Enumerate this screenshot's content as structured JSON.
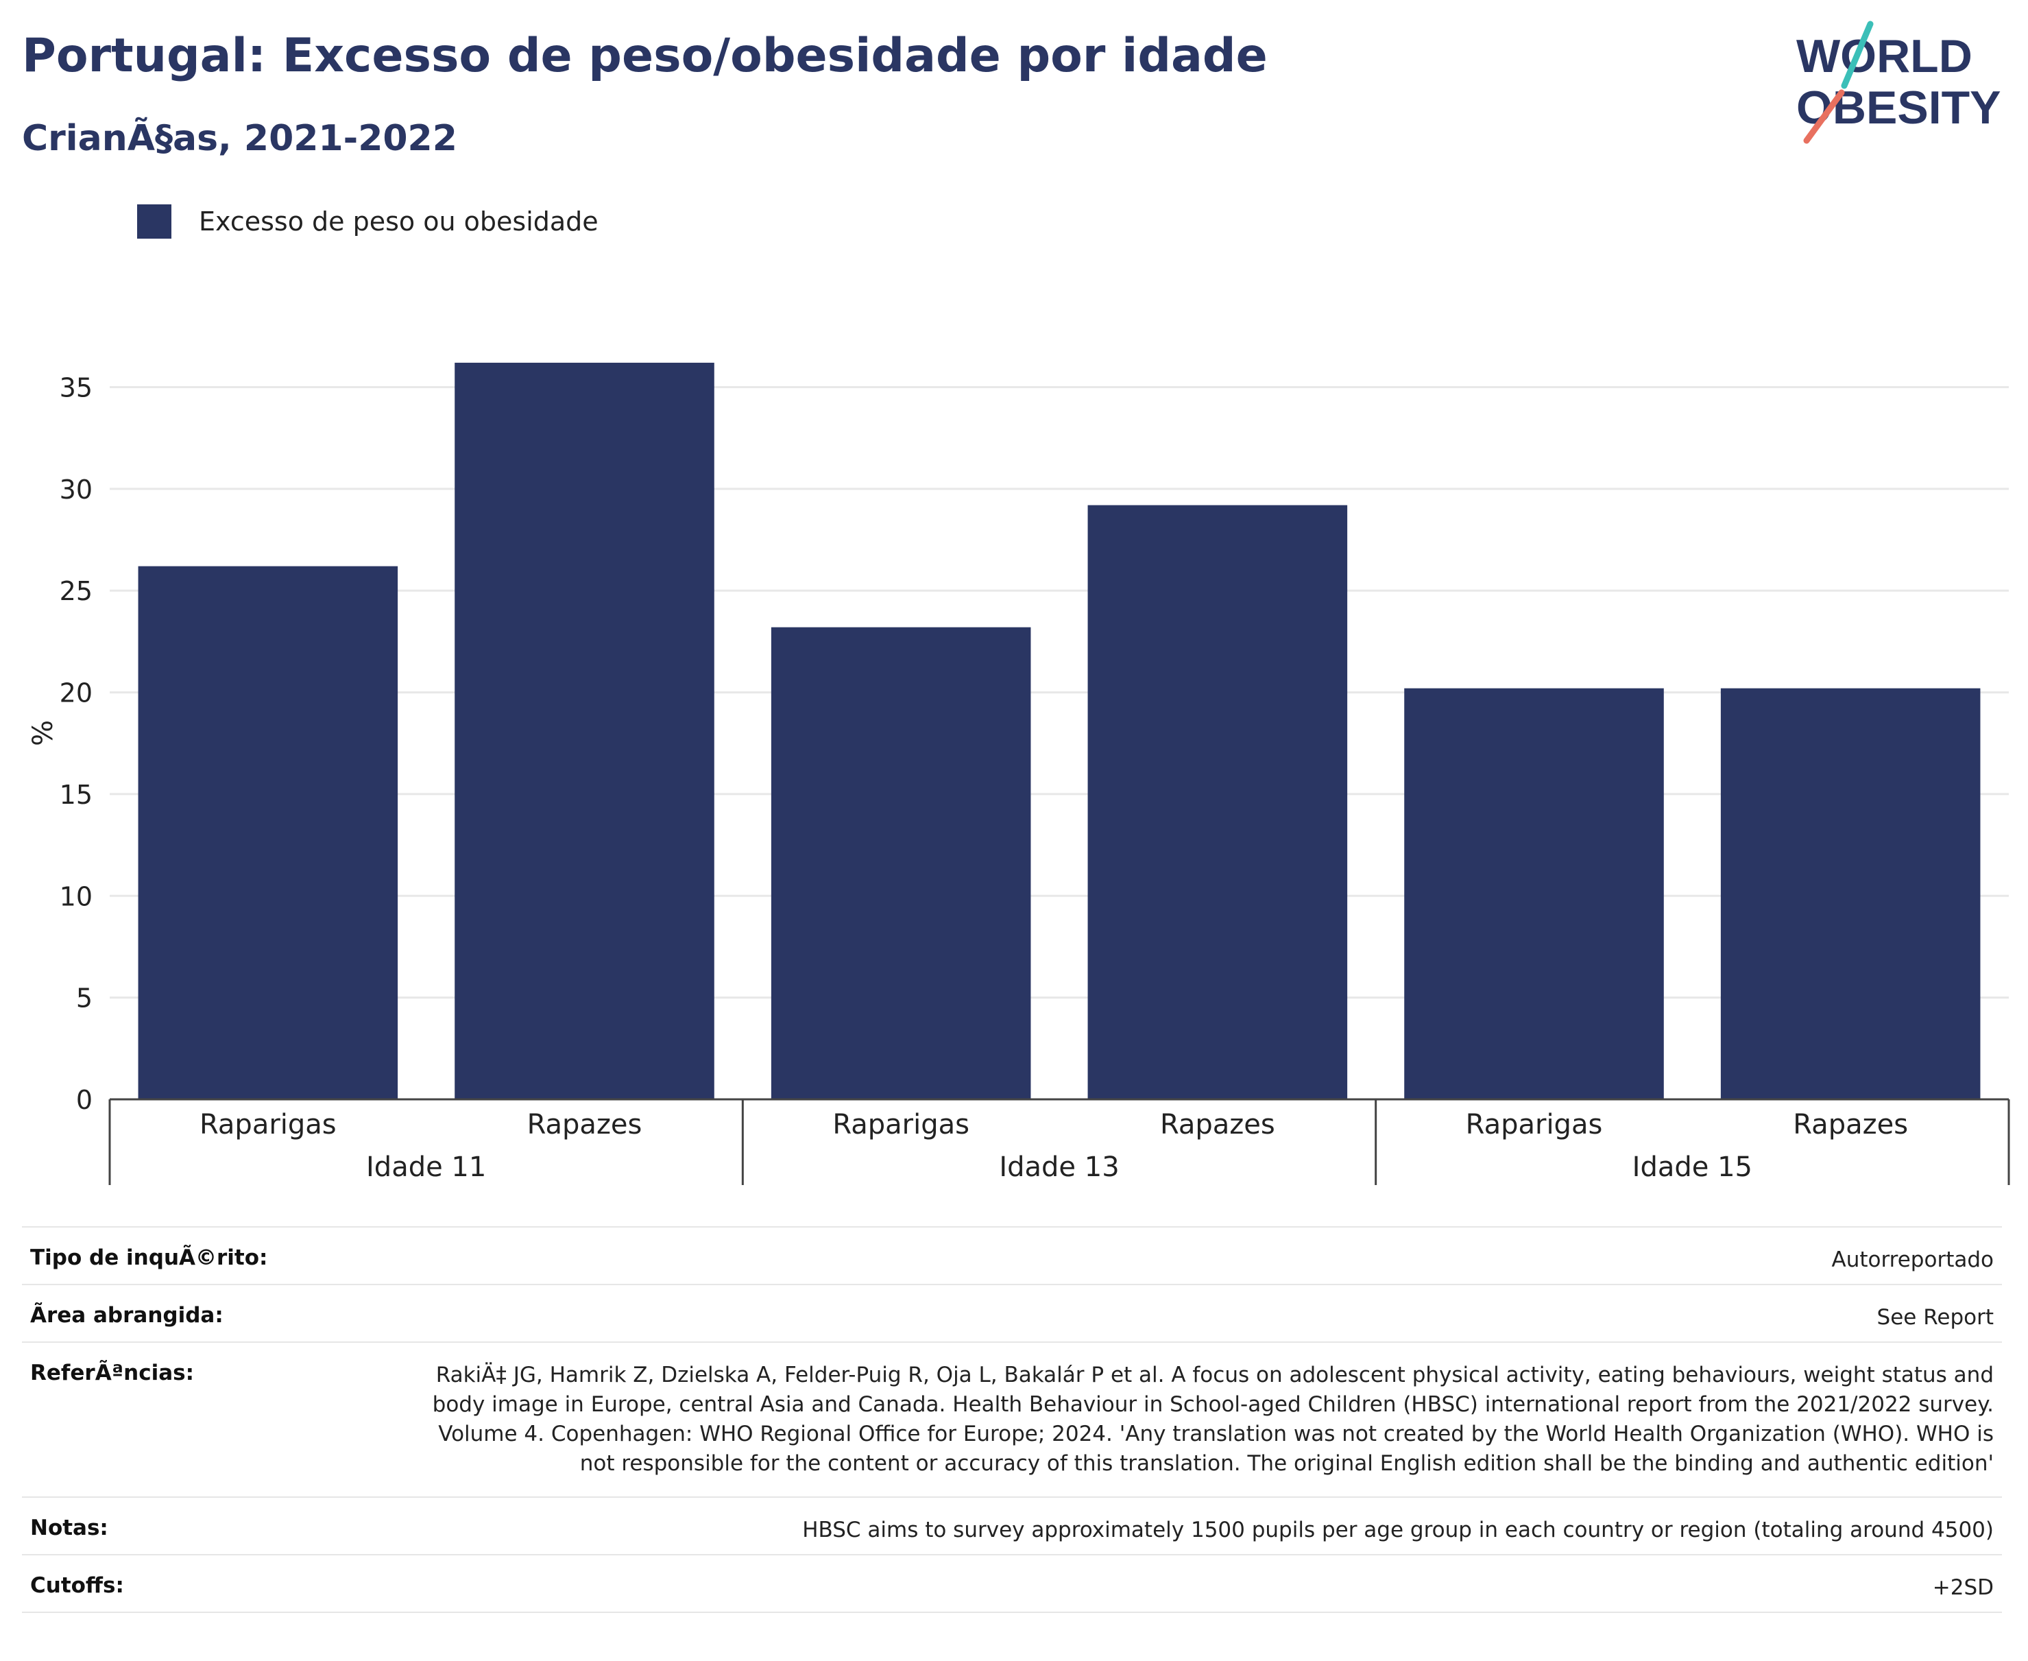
{
  "header": {
    "title": "Portugal: Excesso de peso/obesidade por idade",
    "subtitle": "CrianÃ§as, 2021-2022"
  },
  "logo": {
    "line1": "WORLD",
    "line2": "OBESITY",
    "accent_colors": [
      "#3bbfb8",
      "#e8705f"
    ]
  },
  "legend": {
    "label": "Excesso de peso ou obesidade"
  },
  "colors": {
    "bar": "#2a3663",
    "title": "#2a3663"
  },
  "chart_data": {
    "type": "bar",
    "ylabel": "%",
    "ylim": [
      0,
      36.5
    ],
    "yticks": [
      0,
      5,
      10,
      15,
      20,
      25,
      30,
      35
    ],
    "grid": true,
    "legend_placement": "top-left",
    "series": [
      {
        "name": "Excesso de peso ou obesidade",
        "values": [
          26.2,
          36.2,
          23.2,
          29.2,
          20.2,
          20.2
        ]
      }
    ],
    "categories": [
      "Raparigas",
      "Rapazes",
      "Raparigas",
      "Rapazes",
      "Raparigas",
      "Rapazes"
    ],
    "groups": [
      "Idade 11",
      "Idade 13",
      "Idade 15"
    ]
  },
  "meta": [
    {
      "key": "Tipo de inquÃ©rito:",
      "value": "Autorreportado"
    },
    {
      "key": "Ãrea abrangida:",
      "value": "See Report"
    },
    {
      "key": "ReferÃªncias:",
      "value": "RakiÄ‡ JG, Hamrik Z, Dzielska A, Felder-Puig R, Oja L, Bakalár P et al. A focus on adolescent physical activity, eating behaviours, weight status and body image in Europe, central Asia and Canada. Health Behaviour in School-aged Children (HBSC) international report from the 2021/2022 survey. Volume 4. Copenhagen: WHO Regional Office for Europe; 2024. 'Any translation was not created by the World Health Organization (WHO). WHO is not responsible for the content or accuracy of this translation. The original English edition shall be the binding and authentic edition'"
    },
    {
      "key": "Notas:",
      "value": "HBSC aims to survey approximately 1500 pupils per age group in each country or region (totaling around 4500)"
    },
    {
      "key": "Cutoffs:",
      "value": "+2SD"
    }
  ]
}
